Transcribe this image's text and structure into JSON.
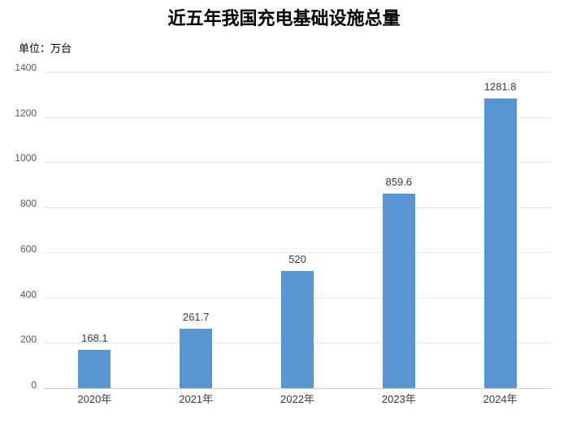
{
  "chart_data": {
    "type": "bar",
    "title": "近五年我国充电基础设施总量",
    "unit_label": "单位：万台",
    "categories": [
      "2020年",
      "2021年",
      "2022年",
      "2023年",
      "2024年"
    ],
    "values": [
      168.1,
      261.7,
      520,
      859.6,
      1281.8
    ],
    "value_labels": [
      "168.1",
      "261.7",
      "520",
      "859.6",
      "1281.8"
    ],
    "xlabel": "",
    "ylabel": "",
    "ylim": [
      0,
      1400
    ],
    "yticks": [
      0,
      200,
      400,
      600,
      800,
      1000,
      1200,
      1400
    ],
    "grid": true,
    "legend": "none",
    "colors": {
      "bar": "#5895D3",
      "gridline": "#E4E4E4",
      "axis_line": "#CFCFCF",
      "ytick_label": "#595959",
      "xtick_label": "#3B3B3B",
      "data_label": "#3B3B3B",
      "title": "#000000",
      "background": "#FFFFFF"
    }
  }
}
